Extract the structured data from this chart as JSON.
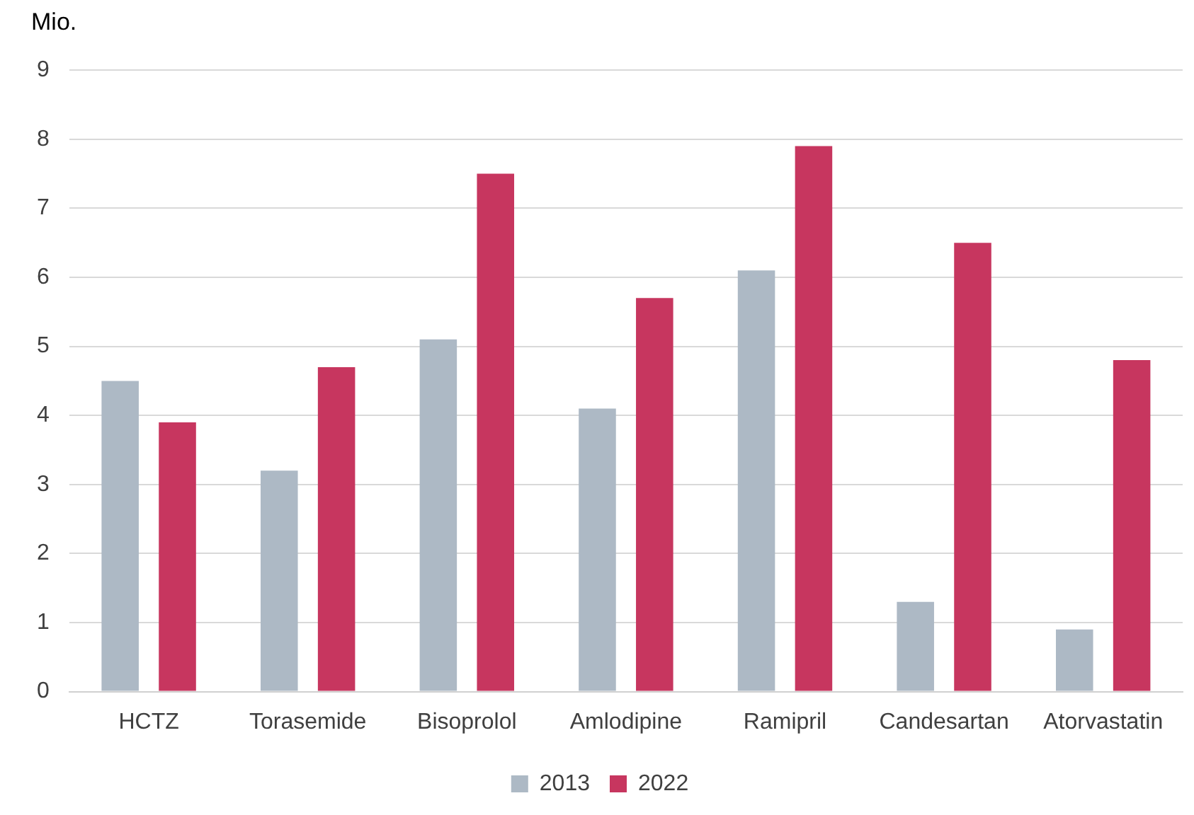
{
  "chart_data": {
    "type": "bar",
    "ylabel": "Mio.",
    "categories": [
      "HCTZ",
      "Torasemide",
      "Bisoprolol",
      "Amlodipine",
      "Ramipril",
      "Candesartan",
      "Atorvastatin"
    ],
    "series": [
      {
        "name": "2013",
        "color": "#adb9c5",
        "values": [
          4.5,
          3.2,
          5.1,
          4.1,
          6.1,
          1.3,
          0.9
        ]
      },
      {
        "name": "2022",
        "color": "#c7365f",
        "values": [
          3.9,
          4.7,
          7.5,
          5.7,
          7.9,
          6.5,
          4.8
        ]
      }
    ],
    "ylim": [
      0,
      9
    ],
    "yticks": [
      0,
      1,
      2,
      3,
      4,
      5,
      6,
      7,
      8,
      9
    ],
    "grid": "y",
    "legend": "bottom"
  }
}
